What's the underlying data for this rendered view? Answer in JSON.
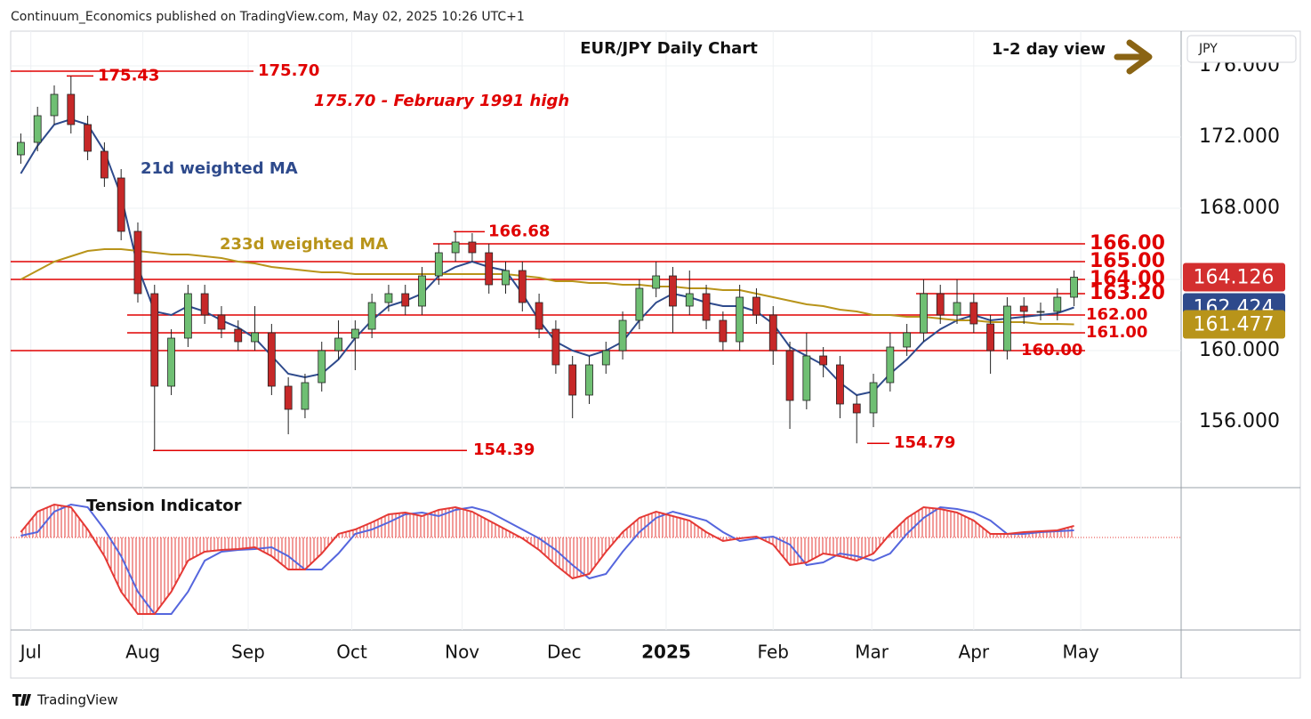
{
  "header": "Continuum_Economics published on TradingView.com, May 02, 2025 10:26 UTC+1",
  "footer": "TradingView",
  "currency": "JPY",
  "chart_data": [
    {
      "type": "candlestick",
      "title": "EUR/JPY Daily Chart",
      "subtitle": "1-2 day view",
      "annotations": [
        "175.70 - February 1991 high",
        "21d weighted MA",
        "233d weighted MA"
      ],
      "xlim": [
        0,
        64
      ],
      "xticks": [
        {
          "value": 1.1,
          "label": "Jul"
        },
        {
          "value": 7.8,
          "label": "Aug"
        },
        {
          "value": 14.1,
          "label": "Sep"
        },
        {
          "value": 20.3,
          "label": "Oct"
        },
        {
          "value": 26.9,
          "label": "Nov"
        },
        {
          "value": 33.0,
          "label": "Dec"
        },
        {
          "value": 39.1,
          "label": "2025"
        },
        {
          "value": 45.5,
          "label": "Feb"
        },
        {
          "value": 51.4,
          "label": "Mar"
        },
        {
          "value": 57.5,
          "label": "Apr"
        },
        {
          "value": 63.9,
          "label": "May"
        }
      ],
      "ylim": [
        152.3,
        177.95
      ],
      "yticks": [
        {
          "value": 156,
          "label": "156.000"
        },
        {
          "value": 160,
          "label": "160.000"
        },
        {
          "value": 164,
          "label": "164.000"
        },
        {
          "value": 168,
          "label": "168.000"
        },
        {
          "value": 172,
          "label": "172.000"
        },
        {
          "value": 176,
          "label": "176.000"
        }
      ],
      "grid": true,
      "up_color": "#6fbf73",
      "down_color": "#c62828",
      "open": [
        171.0,
        171.7,
        173.2,
        174.4,
        172.7,
        171.2,
        169.7,
        166.7,
        163.2,
        158.0,
        160.7,
        163.2,
        162.0,
        161.2,
        160.5,
        161.0,
        158.0,
        156.7,
        158.2,
        160.0,
        160.7,
        161.2,
        162.7,
        163.2,
        162.5,
        164.2,
        165.5,
        166.1,
        165.5,
        163.7,
        164.5,
        162.7,
        161.2,
        159.2,
        157.5,
        159.2,
        160.0,
        161.7,
        163.5,
        164.2,
        162.5,
        163.2,
        161.7,
        160.5,
        163.0,
        162.0,
        160.0,
        157.2,
        159.7,
        159.2,
        157.0,
        156.5,
        158.2,
        160.2,
        161.0,
        163.2,
        162.0,
        162.7,
        161.5,
        160.0,
        162.5,
        162.2,
        162.2,
        163.0
      ],
      "high": [
        172.2,
        173.7,
        174.9,
        175.43,
        173.2,
        171.7,
        170.2,
        167.2,
        163.7,
        161.2,
        163.7,
        163.7,
        162.5,
        161.7,
        162.5,
        161.5,
        158.5,
        158.7,
        160.5,
        161.7,
        161.7,
        163.2,
        163.7,
        163.7,
        164.7,
        166.0,
        166.68,
        166.6,
        166.0,
        165.0,
        165.0,
        163.2,
        161.7,
        159.7,
        159.7,
        160.5,
        162.2,
        164.0,
        165.0,
        164.7,
        164.5,
        163.7,
        162.2,
        163.7,
        163.5,
        162.5,
        160.5,
        161.0,
        160.2,
        159.7,
        157.5,
        158.7,
        161.0,
        161.5,
        164.0,
        163.7,
        164.0,
        163.2,
        162.0,
        163.0,
        163.0,
        162.7,
        163.5,
        164.5
      ],
      "low": [
        170.5,
        171.2,
        172.7,
        172.2,
        170.7,
        169.2,
        166.2,
        162.7,
        154.39,
        157.5,
        160.2,
        161.5,
        160.7,
        160.0,
        160.0,
        157.5,
        155.3,
        156.2,
        157.7,
        159.5,
        158.9,
        160.7,
        162.2,
        162.0,
        162.0,
        163.7,
        165.0,
        165.0,
        163.2,
        163.2,
        162.2,
        160.7,
        158.7,
        156.2,
        157.0,
        158.7,
        159.5,
        161.2,
        163.0,
        161.0,
        162.0,
        161.2,
        160.0,
        160.0,
        161.5,
        159.2,
        155.6,
        156.7,
        158.5,
        156.2,
        154.79,
        155.7,
        157.7,
        159.7,
        160.5,
        161.5,
        161.5,
        161.0,
        158.7,
        159.5,
        161.5,
        161.7,
        161.7,
        162.5
      ],
      "close": [
        171.7,
        173.2,
        174.4,
        172.7,
        171.2,
        169.7,
        166.7,
        163.2,
        158.0,
        160.7,
        163.2,
        162.0,
        161.2,
        160.5,
        161.0,
        158.0,
        156.7,
        158.2,
        160.0,
        160.7,
        161.2,
        162.7,
        163.2,
        162.5,
        164.2,
        165.5,
        166.1,
        165.5,
        163.7,
        164.5,
        162.7,
        161.2,
        159.2,
        157.5,
        159.2,
        160.0,
        161.7,
        163.5,
        164.2,
        162.5,
        163.2,
        161.7,
        160.5,
        163.0,
        162.0,
        160.0,
        157.2,
        159.7,
        159.2,
        157.0,
        156.5,
        158.2,
        160.2,
        161.0,
        163.2,
        162.0,
        162.7,
        161.5,
        160.0,
        162.5,
        162.2,
        162.2,
        163.0,
        164.126
      ],
      "series": [
        {
          "name": "21d weighted MA",
          "color": "#2e4a8c",
          "values": [
            169.95,
            171.5,
            172.7,
            173.0,
            172.7,
            171.2,
            168.7,
            164.7,
            162.2,
            162.0,
            162.5,
            162.2,
            161.7,
            161.3,
            160.7,
            159.7,
            158.7,
            158.5,
            158.7,
            159.5,
            160.7,
            161.7,
            162.5,
            162.8,
            163.2,
            164.2,
            164.7,
            165.0,
            164.7,
            164.5,
            163.2,
            161.7,
            160.5,
            160.0,
            159.7,
            160.0,
            160.5,
            161.7,
            162.7,
            163.2,
            163.0,
            162.7,
            162.5,
            162.5,
            162.2,
            161.5,
            160.2,
            159.7,
            159.2,
            158.2,
            157.5,
            157.7,
            158.7,
            159.5,
            160.5,
            161.2,
            161.7,
            162.0,
            161.7,
            161.8,
            161.9,
            162.0,
            162.1,
            162.424
          ]
        },
        {
          "name": "233d weighted MA",
          "color": "#b8941a",
          "values": [
            164.0,
            164.5,
            165.0,
            165.3,
            165.6,
            165.7,
            165.7,
            165.6,
            165.5,
            165.4,
            165.4,
            165.3,
            165.2,
            165.0,
            164.9,
            164.7,
            164.6,
            164.5,
            164.4,
            164.4,
            164.3,
            164.3,
            164.3,
            164.3,
            164.3,
            164.3,
            164.3,
            164.3,
            164.3,
            164.3,
            164.2,
            164.1,
            163.9,
            163.9,
            163.8,
            163.8,
            163.7,
            163.7,
            163.6,
            163.6,
            163.5,
            163.5,
            163.4,
            163.4,
            163.2,
            163.0,
            162.8,
            162.6,
            162.5,
            162.3,
            162.2,
            162.0,
            162.0,
            161.9,
            161.9,
            161.8,
            161.7,
            161.7,
            161.6,
            161.6,
            161.6,
            161.5,
            161.5,
            161.477
          ]
        }
      ],
      "price_boxes": [
        {
          "value": 164.126,
          "label": "164.126",
          "color": "#d32f2f"
        },
        {
          "value": 162.424,
          "label": "162.424",
          "color": "#2e4a8c"
        },
        {
          "value": 161.477,
          "label": "161.477",
          "color": "#b8941a"
        }
      ],
      "levels": [
        {
          "value": 175.7,
          "label": "175.70"
        },
        {
          "value": 175.43,
          "label": "175.43"
        },
        {
          "value": 166.68,
          "label": "166.68"
        },
        {
          "value": 166,
          "label": "166.00"
        },
        {
          "value": 165,
          "label": "165.00"
        },
        {
          "value": 164,
          "label": "164.00"
        },
        {
          "value": 163.2,
          "label": "163.20"
        },
        {
          "value": 162,
          "label": "162.00"
        },
        {
          "value": 161,
          "label": "161.00"
        },
        {
          "value": 160,
          "label": "160.00"
        },
        {
          "value": 154.39,
          "label": "154.39"
        },
        {
          "value": 154.79,
          "label": "154.79"
        }
      ],
      "level_color": "#e00000"
    },
    {
      "type": "line",
      "title": "Tension Indicator",
      "xlim": [
        0,
        64
      ],
      "ylim": [
        -1.02,
        0.54
      ],
      "series": [
        {
          "color": "#e53935",
          "values": [
            0.06,
            0.29,
            0.37,
            0.34,
            0.09,
            -0.21,
            -0.61,
            -0.86,
            -0.86,
            -0.61,
            -0.26,
            -0.16,
            -0.14,
            -0.13,
            -0.11,
            -0.21,
            -0.36,
            -0.36,
            -0.18,
            0.04,
            0.09,
            0.17,
            0.26,
            0.28,
            0.24,
            0.31,
            0.34,
            0.29,
            0.19,
            0.09,
            -0.01,
            -0.14,
            -0.31,
            -0.46,
            -0.41,
            -0.16,
            0.06,
            0.22,
            0.29,
            0.24,
            0.19,
            0.06,
            -0.04,
            -0.01,
            0.01,
            -0.08,
            -0.31,
            -0.28,
            -0.18,
            -0.21,
            -0.26,
            -0.18,
            0.04,
            0.22,
            0.34,
            0.32,
            0.28,
            0.19,
            0.04,
            0.04,
            0.06,
            0.07,
            0.08,
            0.13
          ]
        },
        {
          "color": "#5566dd",
          "values": [
            0.02,
            0.06,
            0.29,
            0.37,
            0.34,
            0.09,
            -0.21,
            -0.61,
            -0.86,
            -0.86,
            -0.61,
            -0.26,
            -0.16,
            -0.14,
            -0.13,
            -0.11,
            -0.21,
            -0.36,
            -0.36,
            -0.18,
            0.04,
            0.09,
            0.17,
            0.26,
            0.28,
            0.24,
            0.31,
            0.34,
            0.29,
            0.19,
            0.09,
            -0.01,
            -0.14,
            -0.31,
            -0.46,
            -0.41,
            -0.16,
            0.06,
            0.22,
            0.29,
            0.24,
            0.19,
            0.06,
            -0.04,
            -0.01,
            0.01,
            -0.08,
            -0.31,
            -0.28,
            -0.18,
            -0.21,
            -0.26,
            -0.18,
            0.04,
            0.22,
            0.34,
            0.32,
            0.28,
            0.19,
            0.04,
            0.04,
            0.06,
            0.07,
            0.08
          ]
        }
      ]
    }
  ]
}
